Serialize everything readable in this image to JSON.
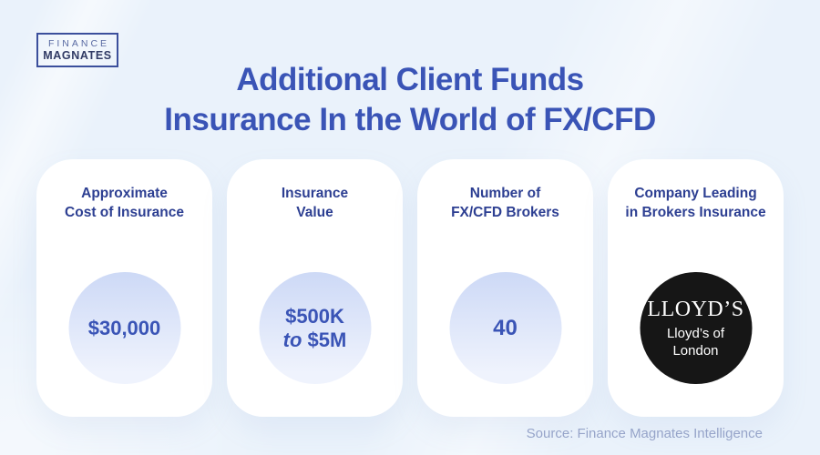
{
  "page": {
    "background_color": "#eaf2fb",
    "accent_blue": "#3a54b6",
    "header_navy": "#2d3f92",
    "circle_gradient_top": "#cdd9f6",
    "circle_gradient_bottom": "#eff3fd",
    "dark_circle_color": "#161616",
    "source_text_color": "#96a4c9"
  },
  "logo": {
    "line1": "FINANCE",
    "line2": "MAGNATES"
  },
  "title": {
    "line1": "Additional Client Funds",
    "line2": "Insurance In the World of FX/CFD"
  },
  "cards": [
    {
      "title": "Approximate\nCost of Insurance",
      "value": "$30,000"
    },
    {
      "title": "Insurance\nValue",
      "value_line1": "$500K",
      "value_to": "to",
      "value_line2": "$5M"
    },
    {
      "title": "Number of\nFX/CFD Brokers",
      "value": "40"
    },
    {
      "title": "Company Leading\nin Brokers Insurance",
      "logo_main": "LLOYD’S",
      "logo_sub": "Lloyd’s of\nLondon"
    }
  ],
  "source": "Source: Finance Magnates Intelligence"
}
